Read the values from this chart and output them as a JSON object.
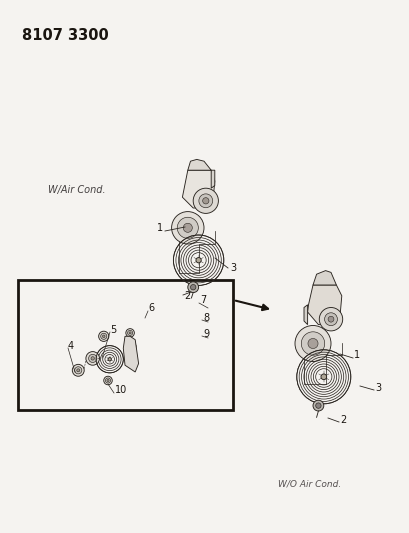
{
  "title_code": "8107 3300",
  "background_color": "#f0eeeb",
  "line_color": "#2a2520",
  "label_fontsize": 7.0,
  "title_fontsize": 10.5,
  "fig_width": 4.1,
  "fig_height": 5.33,
  "dpi": 100
}
